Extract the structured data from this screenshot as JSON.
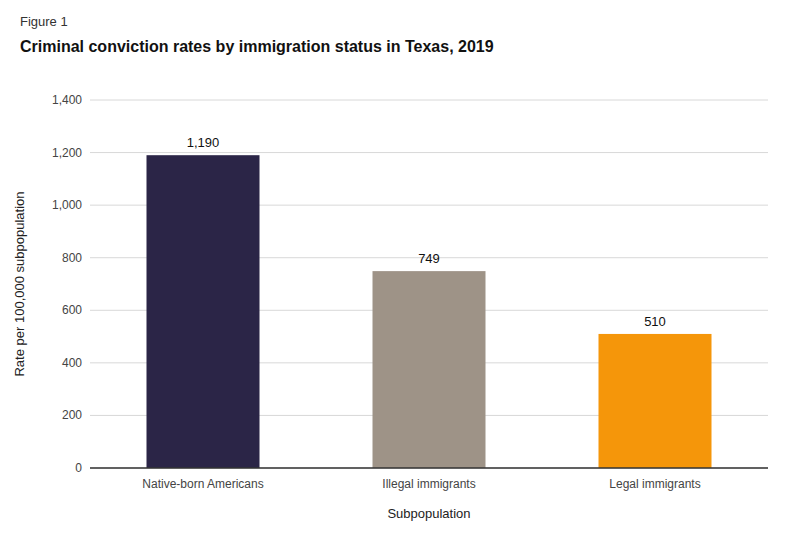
{
  "chart_data": {
    "type": "bar",
    "subtitle": "Figure 1",
    "title": "Criminal conviction rates by immigration status in Texas, 2019",
    "categories": [
      "Native-born Americans",
      "Illegal immigrants",
      "Legal immigrants"
    ],
    "values": [
      1190,
      749,
      510
    ],
    "value_labels": [
      "1,190",
      "749",
      "510"
    ],
    "colors": [
      "#2b2547",
      "#9e9387",
      "#f5960a"
    ],
    "xlabel": "Subpopulation",
    "ylabel": "Rate per 100,000 subpopulation",
    "ylim": [
      0,
      1400
    ],
    "yticks": [
      0,
      200,
      400,
      600,
      800,
      {
        "value": 1000,
        "label": "1,000"
      },
      {
        "value": 1200,
        "label": "1,200"
      },
      {
        "value": 1400,
        "label": "1,400"
      }
    ],
    "grid": true,
    "data_labels": true
  }
}
